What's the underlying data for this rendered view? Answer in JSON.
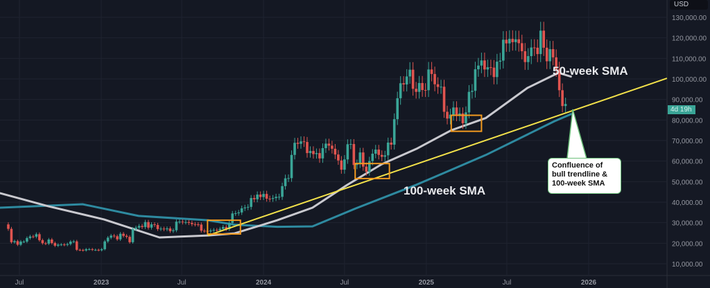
{
  "chart_data": {
    "type": "candlestick",
    "interval": "1W",
    "first_week": "2022-06-06",
    "closes": [
      27,
      20.5,
      21,
      19.3,
      20.8,
      20.8,
      22.5,
      23.3,
      23.2,
      24.4,
      21.5,
      20,
      19.8,
      21.8,
      20.1,
      18.8,
      19.3,
      19.4,
      19.2,
      19.6,
      20.8,
      20.9,
      16.8,
      16.7,
      16.5,
      17.1,
      17.1,
      16.8,
      16.8,
      16.6,
      17.1,
      20.9,
      22.7,
      23.7,
      23.4,
      21.9,
      24.6,
      23.6,
      23.1,
      20.5,
      26.9,
      27.6,
      28.4,
      27.9,
      30.3,
      27.6,
      29.2,
      28.9,
      26.9,
      27.1,
      26.8,
      27.2,
      25.9,
      26.3,
      30.5,
      30.5,
      30.2,
      30.3,
      29.9,
      29.3,
      29.2,
      29.1,
      26.1,
      26.0,
      25.8,
      26.2,
      26.5,
      26.3,
      27.0,
      27.9,
      26.9,
      29.9,
      34.5,
      34.6,
      35.0,
      37.0,
      37.4,
      37.7,
      42.0,
      41.4,
      43.7,
      42.5,
      44.0,
      41.7,
      41.6,
      42.0,
      42.6,
      42.6,
      47.8,
      51.6,
      51.7,
      63.0,
      68.9,
      68.4,
      69.6,
      69.3,
      63.9,
      64.9,
      63.4,
      63.9,
      61.3,
      66.3,
      68.5,
      67.5,
      66.0,
      63.2,
      60.3,
      55.8,
      60.8,
      68.2,
      68.3,
      58.1,
      58.7,
      64.2,
      57.3,
      54.8,
      60.0,
      63.6,
      65.6,
      63.0,
      62.1,
      62.8,
      69.0,
      68.0,
      80.4,
      90.6,
      97.9,
      97.3,
      101.2,
      104.5,
      95.2,
      93.7,
      98.0,
      94.6,
      94.5,
      104.6,
      102.4,
      97.4,
      96.1,
      96.2,
      84.0,
      80.7,
      82.6,
      86.1,
      82.3,
      83.2,
      78.4,
      83.7,
      93.7,
      94.2,
      104.7,
      106.5,
      109.0,
      104.6,
      105.7,
      105.5,
      100.9,
      108.4,
      108.9,
      119.1,
      117.3,
      119.5,
      117.9,
      119.3,
      117.4,
      113.5,
      108.2,
      111.1,
      115.3,
      115.2,
      112.1,
      123.5,
      115.2,
      108.6,
      114.5,
      110.5,
      104.7,
      94.5,
      86.8,
      87.8
    ],
    "price_unit": "thousands USD",
    "sma_50_week": [
      [
        "2022-05-18",
        44.4
      ],
      [
        "2022-09-04",
        38
      ],
      [
        "2023-01-07",
        31.6
      ],
      [
        "2023-05-12",
        22.8
      ],
      [
        "2023-08-29",
        23.8
      ],
      [
        "2023-10-28",
        24.8
      ],
      [
        "2024-02-01",
        31.2
      ],
      [
        "2024-04-20",
        37.3
      ],
      [
        "2024-07-07",
        48.4
      ],
      [
        "2024-09-23",
        58.5
      ],
      [
        "2024-12-10",
        66
      ],
      [
        "2025-02-26",
        75
      ],
      [
        "2025-05-15",
        81
      ],
      [
        "2025-08-16",
        95.6
      ],
      [
        "2025-10-25",
        103
      ],
      [
        "2025-11-24",
        101
      ]
    ],
    "sma_100_week": [
      [
        "2022-05-18",
        37.3
      ],
      [
        "2022-11-20",
        39
      ],
      [
        "2023-03-26",
        33.3
      ],
      [
        "2023-08-29",
        31.2
      ],
      [
        "2023-10-28",
        29
      ],
      [
        "2024-02-01",
        28
      ],
      [
        "2024-04-20",
        28.2
      ],
      [
        "2024-07-27",
        37
      ],
      [
        "2024-12-10",
        48.5
      ],
      [
        "2025-05-15",
        63
      ],
      [
        "2025-10-16",
        79.4
      ],
      [
        "2025-11-24",
        83
      ]
    ],
    "trendline": [
      [
        "2023-08-29",
        23.8
      ],
      [
        "2026-06-26",
        100.3
      ]
    ],
    "highlight_boxes": [
      {
        "from": "2023-08-28",
        "to": "2023-11-10",
        "low": 24.5,
        "high": 31.2
      },
      {
        "from": "2024-07-25",
        "to": "2024-10-10",
        "low": 51.5,
        "high": 58.8
      },
      {
        "from": "2025-02-26",
        "to": "2025-05-05",
        "low": 74.5,
        "high": 82.3
      }
    ],
    "y_axis": {
      "ticks": [
        "130,000.00",
        "120,000.00",
        "110,000.00",
        "100,000.00",
        "90,000.00",
        "80,000.00",
        "70,000.00",
        "60,000.00",
        "50,000.00",
        "40,000.00",
        "30,000.00",
        "20,000.00",
        "10,000.00"
      ],
      "ylim": [
        5000,
        132000
      ],
      "unit": "USD"
    },
    "x_axis": {
      "ticks": [
        [
          "2022-07-01",
          "Jul"
        ],
        [
          "2023-01-01",
          "2023"
        ],
        [
          "2023-07-01",
          "Jul"
        ],
        [
          "2024-01-01",
          "2024"
        ],
        [
          "2024-07-01",
          "Jul"
        ],
        [
          "2025-01-01",
          "2025"
        ],
        [
          "2025-07-01",
          "Jul"
        ],
        [
          "2026-01-01",
          "2026"
        ]
      ]
    },
    "annotations": {
      "sma50": "50-week SMA",
      "sma100": "100-week SMA",
      "callout": [
        "Confluence of",
        "bull trendline &",
        "100-week SMA"
      ]
    },
    "countdown": "4d 19h",
    "colors": {
      "up": "#3aa597",
      "down": "#e0544f",
      "sma50": "#c9c9cf",
      "sma100": "#2e8aa0",
      "trend": "#f2e14a",
      "box": "#f29a1f",
      "bg": "#141823"
    },
    "grid": true
  }
}
